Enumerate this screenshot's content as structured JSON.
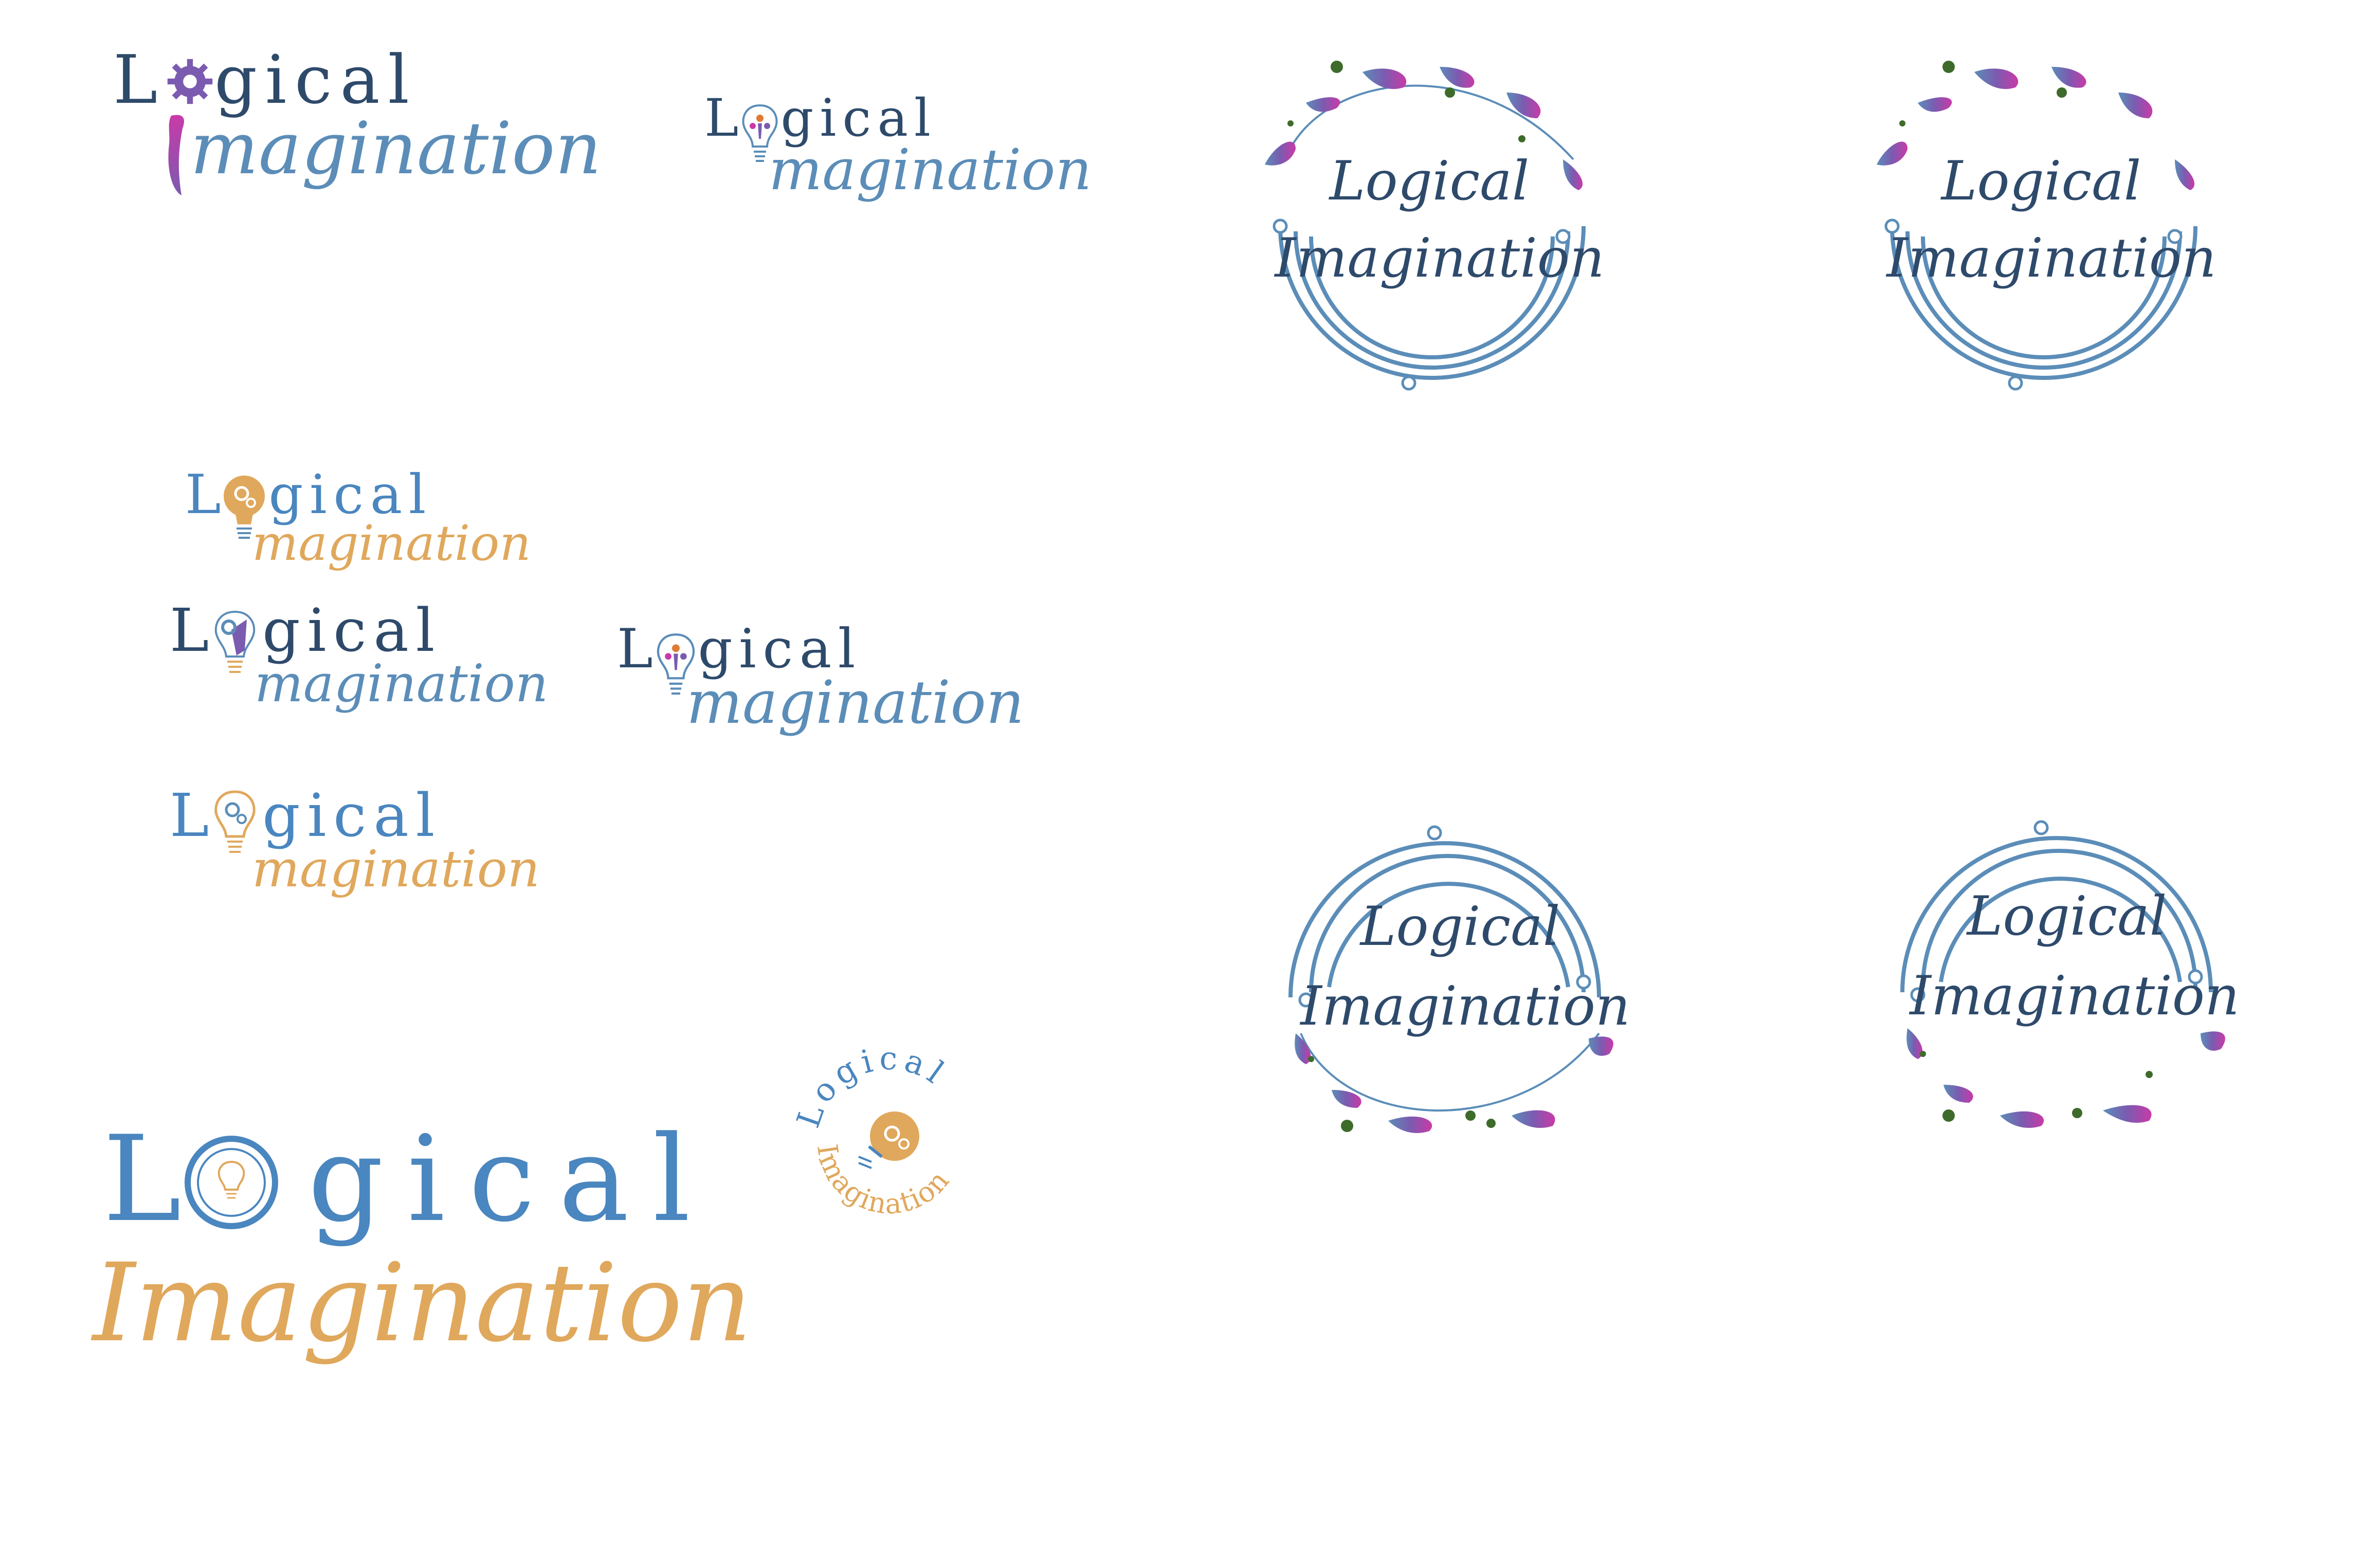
{
  "brand": {
    "word1": "Logical",
    "word1_rest": "gical",
    "word1_first": "L",
    "word2": "Imagination",
    "word2_rest": "magination"
  },
  "colors": {
    "navy": "#2e4a6b",
    "blue": "#5b8db8",
    "orange": "#e0a85c",
    "magenta": "#c93aa8",
    "purple": "#7b5bb0",
    "green": "#3e6b2a"
  },
  "icons": {
    "gear": "gear-icon",
    "bulb": "lightbulb-icon",
    "circuit": "circuit-ring-icon",
    "petal": "petal-ornament"
  }
}
